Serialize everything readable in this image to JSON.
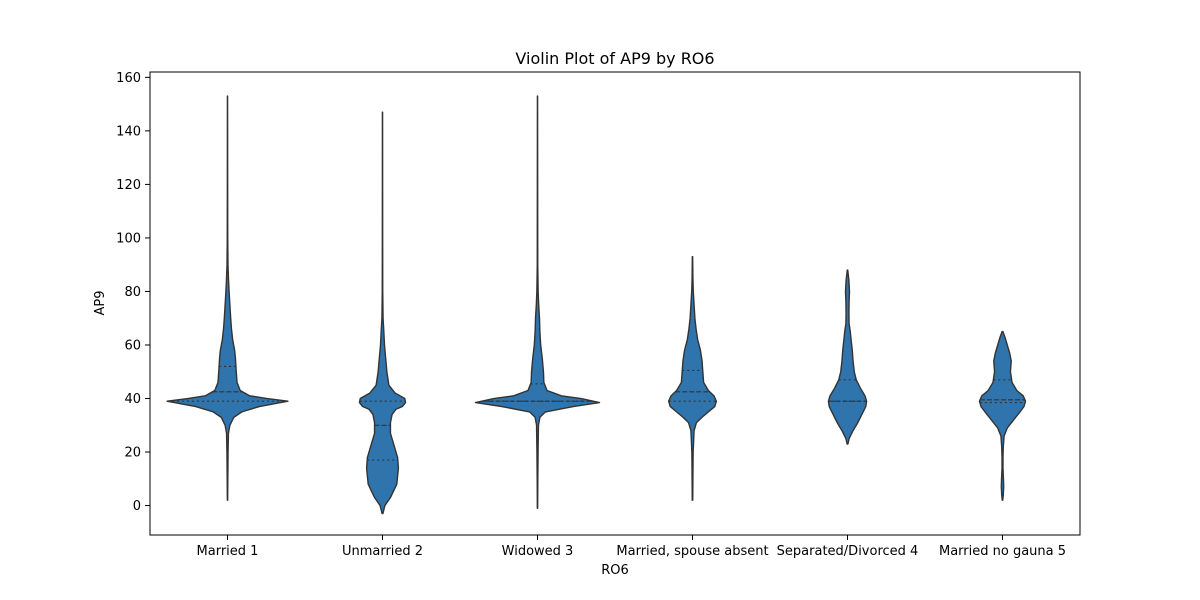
{
  "chart_data": {
    "type": "violin",
    "title": "Violin Plot of AP9 by RO6",
    "xlabel": "RO6",
    "ylabel": "AP9",
    "ylim": [
      -11,
      162
    ],
    "yticks": [
      0,
      20,
      40,
      60,
      80,
      100,
      120,
      140,
      160
    ],
    "grid": false,
    "fill_color": "#2f74ad",
    "edge_color": "#333333",
    "categories": [
      "Married 1",
      "Unmarried 2",
      "Widowed 3",
      "Married, spouse absent",
      "Separated/Divorced 4",
      "Married no gauna 5"
    ],
    "violins": [
      {
        "category": "Married 1",
        "min": 2,
        "max": 153,
        "q1": 39,
        "median": 42.5,
        "q3": 52,
        "profile": [
          [
            2,
            0.002
          ],
          [
            10,
            0.004
          ],
          [
            20,
            0.007
          ],
          [
            27,
            0.012
          ],
          [
            30,
            0.03
          ],
          [
            33,
            0.08
          ],
          [
            35,
            0.18
          ],
          [
            37,
            0.4
          ],
          [
            39,
            0.76
          ],
          [
            40,
            0.5
          ],
          [
            41,
            0.28
          ],
          [
            43,
            0.16
          ],
          [
            46,
            0.12
          ],
          [
            50,
            0.11
          ],
          [
            55,
            0.1
          ],
          [
            58,
            0.09
          ],
          [
            62,
            0.065
          ],
          [
            66,
            0.05
          ],
          [
            70,
            0.04
          ],
          [
            75,
            0.03
          ],
          [
            80,
            0.02
          ],
          [
            85,
            0.012
          ],
          [
            90,
            0.006
          ],
          [
            100,
            0.003
          ],
          [
            120,
            0.002
          ],
          [
            153,
            0.001
          ]
        ]
      },
      {
        "category": "Unmarried 2",
        "min": -3,
        "max": 147,
        "q1": 17,
        "median": 30,
        "q3": 39,
        "profile": [
          [
            -3,
            0.005
          ],
          [
            0,
            0.03
          ],
          [
            3,
            0.1
          ],
          [
            8,
            0.18
          ],
          [
            14,
            0.2
          ],
          [
            18,
            0.19
          ],
          [
            22,
            0.15
          ],
          [
            27,
            0.1
          ],
          [
            31,
            0.1
          ],
          [
            34,
            0.12
          ],
          [
            36,
            0.17
          ],
          [
            37,
            0.25
          ],
          [
            38.5,
            0.29
          ],
          [
            40,
            0.28
          ],
          [
            42,
            0.16
          ],
          [
            45,
            0.08
          ],
          [
            50,
            0.055
          ],
          [
            55,
            0.04
          ],
          [
            60,
            0.025
          ],
          [
            66,
            0.015
          ],
          [
            70,
            0.007
          ],
          [
            80,
            0.003
          ],
          [
            100,
            0.002
          ],
          [
            147,
            0.001
          ]
        ]
      },
      {
        "category": "Widowed 3",
        "min": -1,
        "max": 153,
        "q1": 39,
        "median": 39,
        "q3": 45.5,
        "profile": [
          [
            -1,
            0.002
          ],
          [
            10,
            0.004
          ],
          [
            20,
            0.007
          ],
          [
            30,
            0.012
          ],
          [
            33,
            0.03
          ],
          [
            35,
            0.1
          ],
          [
            37,
            0.45
          ],
          [
            38.5,
            0.78
          ],
          [
            40,
            0.55
          ],
          [
            41,
            0.3
          ],
          [
            43,
            0.12
          ],
          [
            46,
            0.08
          ],
          [
            50,
            0.075
          ],
          [
            55,
            0.06
          ],
          [
            60,
            0.04
          ],
          [
            65,
            0.03
          ],
          [
            70,
            0.025
          ],
          [
            75,
            0.015
          ],
          [
            80,
            0.008
          ],
          [
            90,
            0.003
          ],
          [
            120,
            0.002
          ],
          [
            153,
            0.001
          ]
        ]
      },
      {
        "category": "Married, spouse absent",
        "min": 2,
        "max": 93,
        "q1": 39,
        "median": 42.5,
        "q3": 50.5,
        "profile": [
          [
            2,
            0.003
          ],
          [
            10,
            0.005
          ],
          [
            20,
            0.008
          ],
          [
            28,
            0.02
          ],
          [
            31,
            0.05
          ],
          [
            33,
            0.12
          ],
          [
            35,
            0.2
          ],
          [
            37,
            0.28
          ],
          [
            39,
            0.3
          ],
          [
            41,
            0.27
          ],
          [
            43,
            0.2
          ],
          [
            46,
            0.14
          ],
          [
            50,
            0.13
          ],
          [
            54,
            0.12
          ],
          [
            58,
            0.1
          ],
          [
            62,
            0.065
          ],
          [
            66,
            0.045
          ],
          [
            70,
            0.03
          ],
          [
            75,
            0.02
          ],
          [
            80,
            0.01
          ],
          [
            85,
            0.005
          ],
          [
            93,
            0.002
          ]
        ]
      },
      {
        "category": "Separated/Divorced 4",
        "min": 23,
        "max": 88,
        "q1": 39,
        "median": 39,
        "q3": 47,
        "profile": [
          [
            23,
            0.005
          ],
          [
            25,
            0.02
          ],
          [
            28,
            0.07
          ],
          [
            31,
            0.13
          ],
          [
            34,
            0.18
          ],
          [
            37,
            0.23
          ],
          [
            39,
            0.24
          ],
          [
            41,
            0.22
          ],
          [
            44,
            0.16
          ],
          [
            47,
            0.11
          ],
          [
            50,
            0.085
          ],
          [
            54,
            0.07
          ],
          [
            58,
            0.06
          ],
          [
            62,
            0.045
          ],
          [
            65,
            0.035
          ],
          [
            68,
            0.02
          ],
          [
            72,
            0.018
          ],
          [
            76,
            0.02
          ],
          [
            80,
            0.025
          ],
          [
            84,
            0.018
          ],
          [
            88,
            0.003
          ]
        ]
      },
      {
        "category": "Married no gauna 5",
        "min": 2,
        "max": 65,
        "q1": 38.5,
        "median": 39.5,
        "q3": 47,
        "profile": [
          [
            2,
            0.003
          ],
          [
            4,
            0.01
          ],
          [
            7,
            0.015
          ],
          [
            10,
            0.012
          ],
          [
            14,
            0.006
          ],
          [
            18,
            0.006
          ],
          [
            22,
            0.01
          ],
          [
            26,
            0.02
          ],
          [
            29,
            0.06
          ],
          [
            32,
            0.14
          ],
          [
            35,
            0.22
          ],
          [
            37,
            0.27
          ],
          [
            39,
            0.29
          ],
          [
            41,
            0.26
          ],
          [
            43,
            0.18
          ],
          [
            46,
            0.12
          ],
          [
            50,
            0.1
          ],
          [
            54,
            0.11
          ],
          [
            57,
            0.09
          ],
          [
            60,
            0.06
          ],
          [
            63,
            0.03
          ],
          [
            65,
            0.005
          ]
        ]
      }
    ]
  }
}
